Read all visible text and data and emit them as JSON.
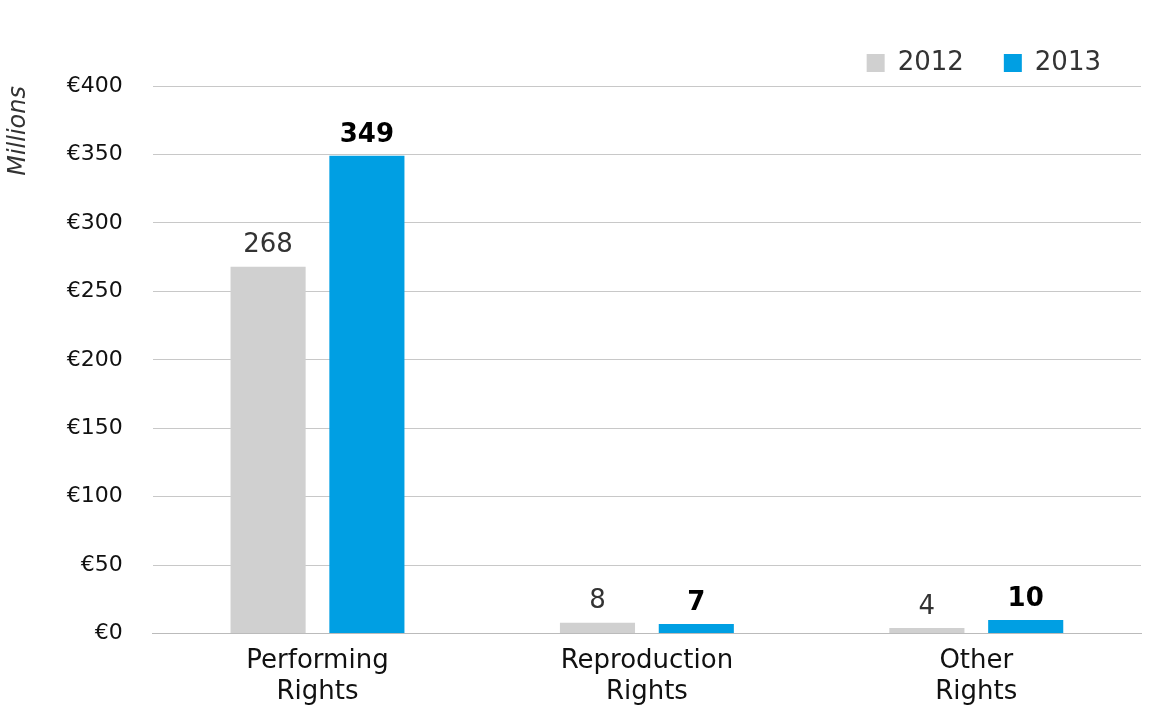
{
  "chart_data": {
    "type": "bar",
    "ylabel": "Millions",
    "categories": [
      "Performing Rights",
      "Reproduction Rights",
      "Other Rights"
    ],
    "series": [
      {
        "name": "2012",
        "color": "#d0d0d0",
        "values": [
          268,
          8,
          4
        ]
      },
      {
        "name": "2013",
        "color": "#009fe3",
        "values": [
          349,
          7,
          10
        ]
      }
    ],
    "ylim": [
      0,
      400
    ],
    "yticks": [
      {
        "value": 0,
        "label": "€0"
      },
      {
        "value": 50,
        "label": "€50"
      },
      {
        "value": 100,
        "label": "€100"
      },
      {
        "value": 150,
        "label": "€150"
      },
      {
        "value": 200,
        "label": "€200"
      },
      {
        "value": 250,
        "label": "€250"
      },
      {
        "value": 300,
        "label": "€300"
      },
      {
        "value": 350,
        "label": "€350"
      },
      {
        "value": 400,
        "label": "€400"
      }
    ],
    "grid": "y",
    "legend": "top right",
    "data_labels": true
  }
}
